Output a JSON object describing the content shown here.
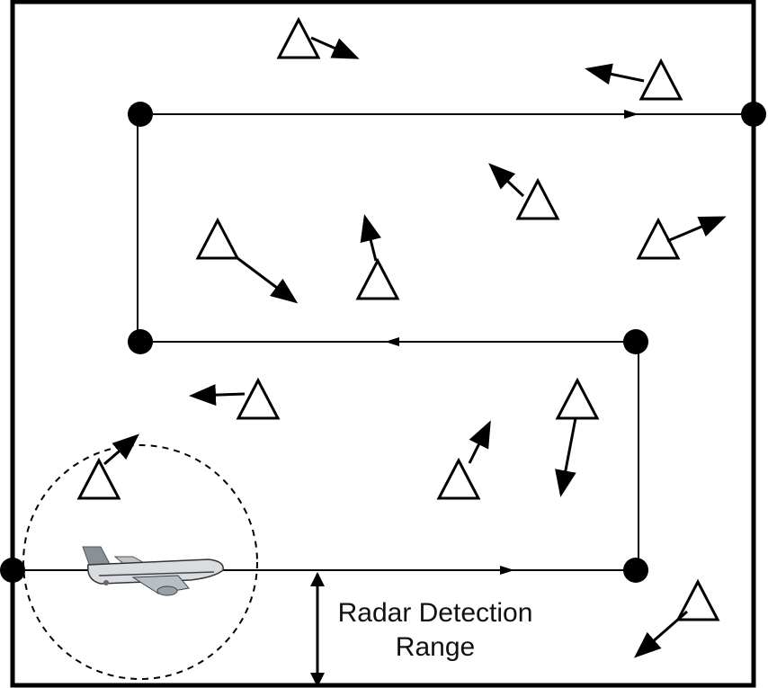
{
  "annotation": {
    "line1": "Radar Detection",
    "line2": "Range"
  },
  "colors": {
    "stroke": "#000000",
    "background": "#ffffff",
    "aircraft_body": "#d9dde2",
    "aircraft_tail": "#8a9098"
  },
  "icons": [
    "aircraft-icon",
    "target-triangle-icon",
    "waypoint-dot-icon",
    "heading-arrow-icon"
  ]
}
